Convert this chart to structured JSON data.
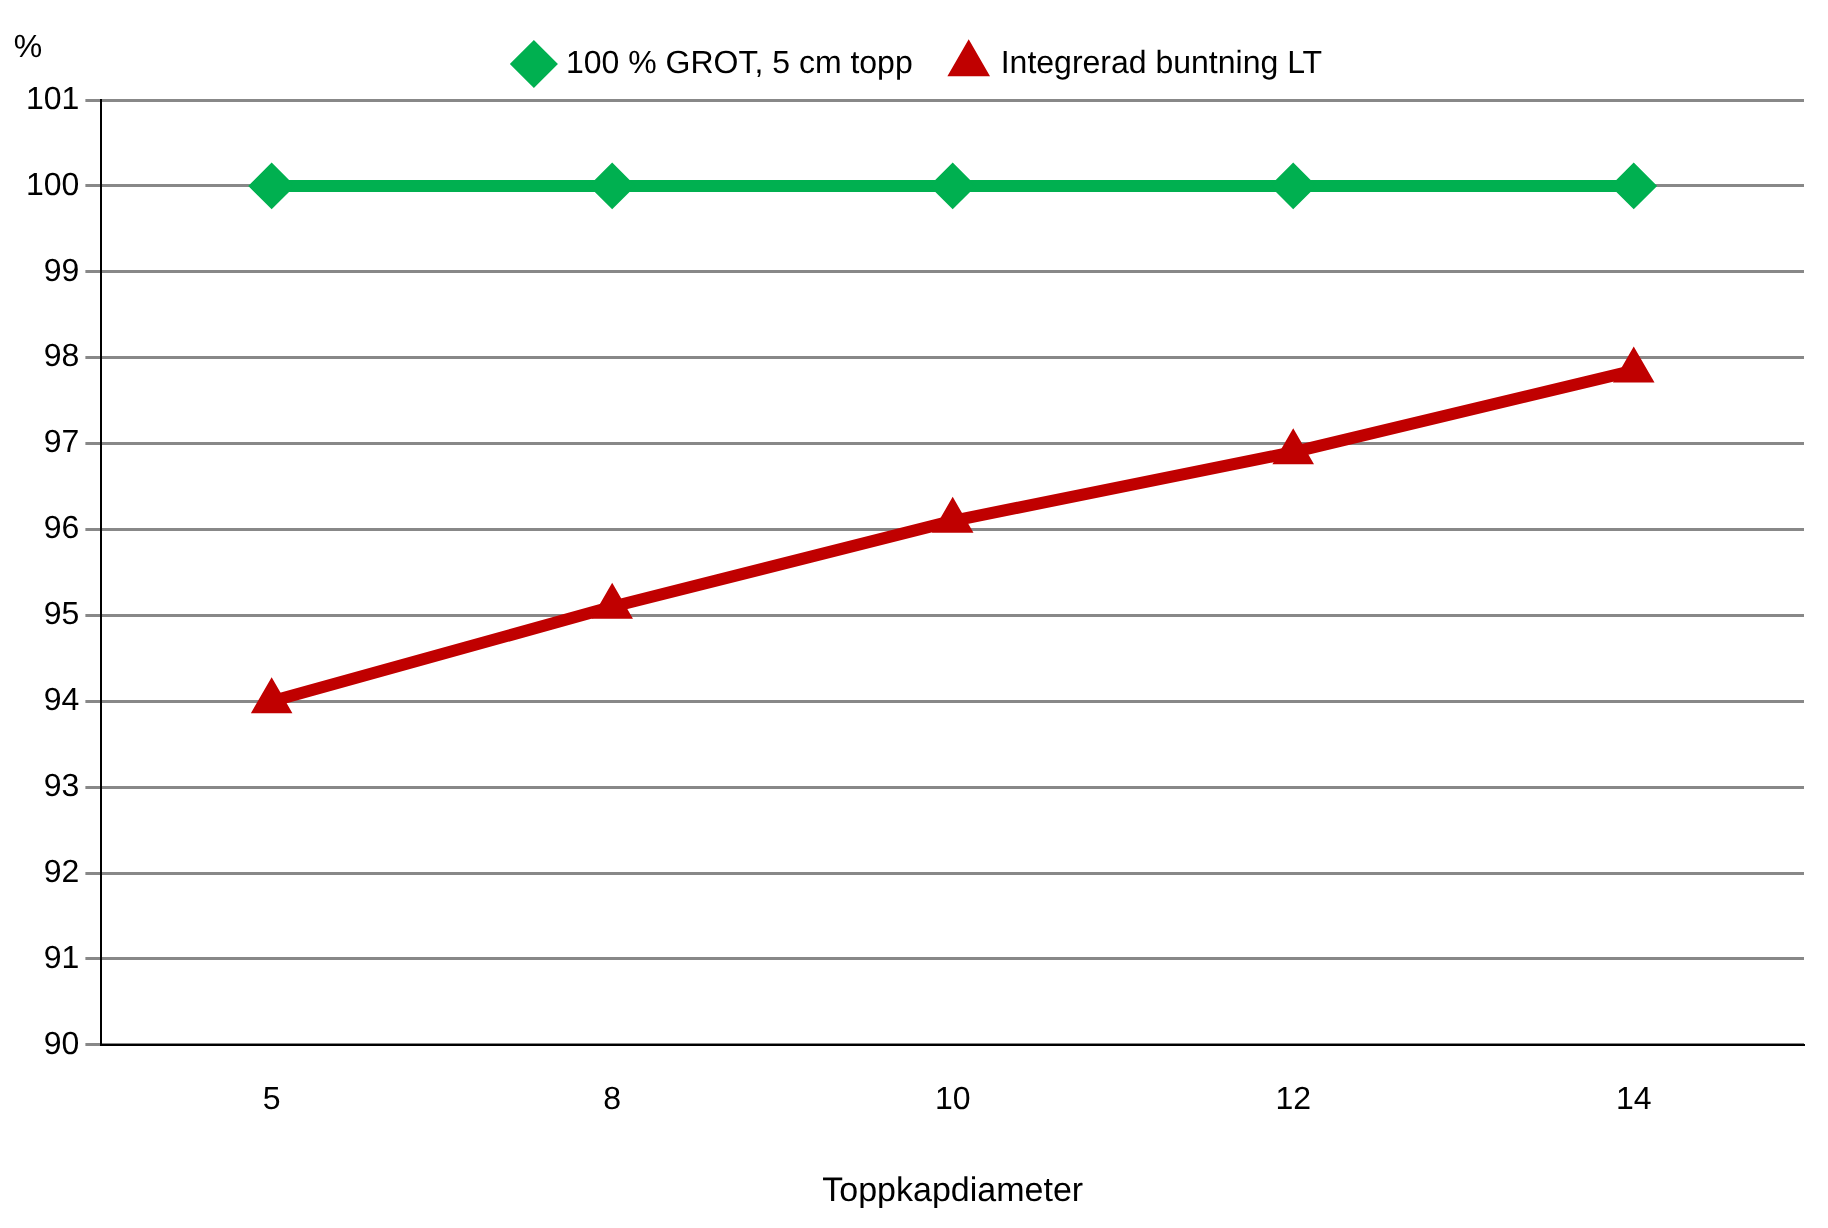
{
  "chart_data": {
    "type": "line",
    "xlabel": "Toppkapdiameter",
    "ylabel": "%",
    "categories": [
      "5",
      "8",
      "10",
      "12",
      "14"
    ],
    "series": [
      {
        "name": "100 % GROT, 5 cm topp",
        "color": "#00b050",
        "marker": "diamond",
        "values": [
          100,
          100,
          100,
          100,
          100
        ]
      },
      {
        "name": "Integrerad buntning LT",
        "color": "#c00000",
        "marker": "triangle",
        "values": [
          94.0,
          95.1,
          96.1,
          96.9,
          97.85
        ]
      }
    ],
    "ylim": [
      90,
      101
    ],
    "yticks": [
      90,
      91,
      92,
      93,
      94,
      95,
      96,
      97,
      98,
      99,
      100,
      101
    ],
    "grid": "y",
    "legend": "top",
    "line_style": "solid"
  }
}
